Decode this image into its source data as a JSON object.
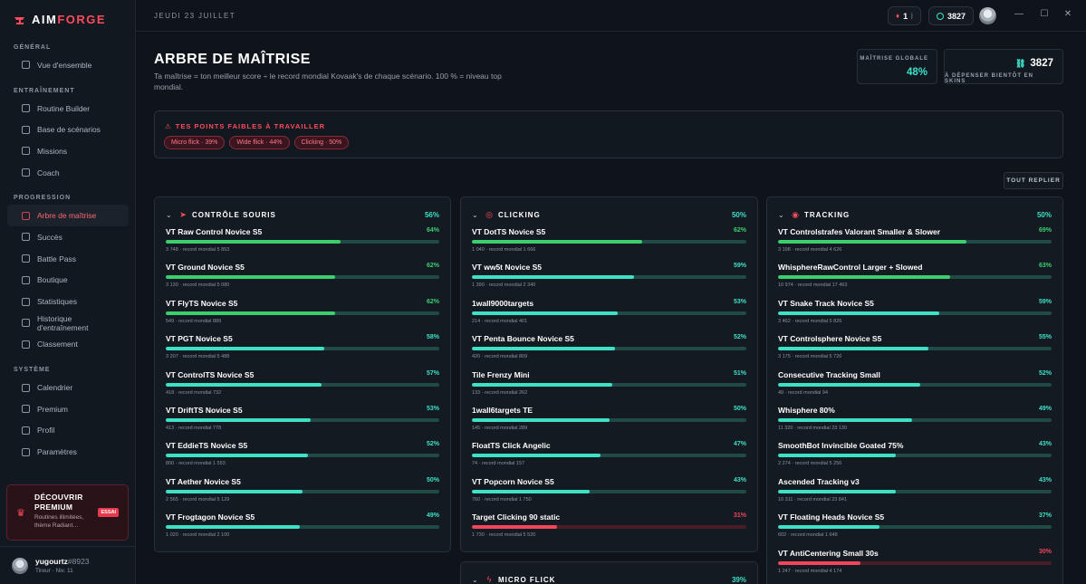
{
  "app": {
    "logo_a": "AIM",
    "logo_b": "FORGE"
  },
  "nav": {
    "sections": [
      {
        "label": "GÉNÉRAL",
        "items": [
          {
            "label": "Vue d'ensemble",
            "icon": "grid-icon"
          }
        ]
      },
      {
        "label": "ENTRAÎNEMENT",
        "items": [
          {
            "label": "Routine Builder",
            "icon": "clock-icon"
          },
          {
            "label": "Base de scénarios",
            "icon": "database-icon"
          },
          {
            "label": "Missions",
            "icon": "target-icon"
          },
          {
            "label": "Coach",
            "icon": "compass-icon"
          }
        ]
      },
      {
        "label": "PROGRESSION",
        "items": [
          {
            "label": "Arbre de maîtrise",
            "icon": "tree-icon",
            "active": true
          },
          {
            "label": "Succès",
            "icon": "trophy-icon"
          },
          {
            "label": "Battle Pass",
            "icon": "ticket-icon"
          },
          {
            "label": "Boutique",
            "icon": "bag-icon"
          },
          {
            "label": "Statistiques",
            "icon": "chart-icon"
          },
          {
            "label": "Historique d'entraînement",
            "icon": "history-icon"
          },
          {
            "label": "Classement",
            "icon": "medal-icon"
          }
        ]
      },
      {
        "label": "SYSTÈME",
        "items": [
          {
            "label": "Calendrier",
            "icon": "calendar-icon"
          },
          {
            "label": "Premium",
            "icon": "crown-icon"
          },
          {
            "label": "Profil",
            "icon": "user-icon"
          },
          {
            "label": "Paramètres",
            "icon": "gear-icon"
          }
        ]
      }
    ]
  },
  "promo": {
    "title": "DÉCOUVRIR PREMIUM",
    "subtitle": "Routines illimitées, thème Radiant…",
    "badge": "ESSAI"
  },
  "user": {
    "name": "yugourtz",
    "tag": "#8923",
    "level": "Tireur · Niv. 11"
  },
  "topbar": {
    "date": "JEUDI 23 JUILLET",
    "streak": "1",
    "streak_unit": "j",
    "coins": "3827"
  },
  "header": {
    "title": "ARBRE DE MAÎTRISE",
    "subtitle": "Ta maîtrise = ton meilleur score ÷ le record mondial Kovaak's de chaque scénario. 100 % = niveau top mondial.",
    "global_label": "MAÎTRISE GLOBALE",
    "global_value": "48%",
    "coins_value": "3827",
    "coins_label": "À DÉPENSER BIENTÔT EN SKINS"
  },
  "weak": {
    "title": "TES POINTS FAIBLES À TRAVAILLER",
    "chips": [
      "Micro flick · 39%",
      "Wide flick · 44%",
      "Clicking · 50%"
    ]
  },
  "collapse_label": "TOUT REPLIER",
  "colors": {
    "accent": "#ff4b5c",
    "teal": "#3ee0c6",
    "green": "#3ccf6e",
    "red": "#f0455a"
  },
  "panels": [
    {
      "title": "CONTRÔLE SOURIS",
      "pct": "56%",
      "icon": "cursor-icon",
      "rows": [
        {
          "name": "VT Raw Control Novice S5",
          "pct": "64%",
          "value": 64,
          "meta": "3 748 · record mondial 5 853",
          "tone": "green"
        },
        {
          "name": "VT Ground Novice S5",
          "pct": "62%",
          "value": 62,
          "meta": "3 130 · record mondial 5 080",
          "tone": "green"
        },
        {
          "name": "VT FlyTS Novice S5",
          "pct": "62%",
          "value": 62,
          "meta": "549 · record mondial 889",
          "tone": "green"
        },
        {
          "name": "VT PGT Novice S5",
          "pct": "58%",
          "value": 58,
          "meta": "3 207 · record mondial 5 488",
          "tone": "teal"
        },
        {
          "name": "VT ControlTS Novice S5",
          "pct": "57%",
          "value": 57,
          "meta": "418 · record mondial 732",
          "tone": "teal"
        },
        {
          "name": "VT DriftTS Novice S5",
          "pct": "53%",
          "value": 53,
          "meta": "413 · record mondial 778",
          "tone": "teal"
        },
        {
          "name": "VT EddieTS Novice S5",
          "pct": "52%",
          "value": 52,
          "meta": "800 · record mondial 1 553",
          "tone": "teal"
        },
        {
          "name": "VT Aether Novice S5",
          "pct": "50%",
          "value": 50,
          "meta": "2 565 · record mondial 5 129",
          "tone": "teal"
        },
        {
          "name": "VT Frogtagon Novice S5",
          "pct": "49%",
          "value": 49,
          "meta": "1 020 · record mondial 2 100",
          "tone": "teal"
        }
      ]
    },
    {
      "title": "CLICKING",
      "pct": "50%",
      "icon": "crosshair-icon",
      "rows": [
        {
          "name": "VT DotTS Novice S5",
          "pct": "62%",
          "value": 62,
          "meta": "1 040 · record mondial 1 666",
          "tone": "green"
        },
        {
          "name": "VT ww5t Novice S5",
          "pct": "59%",
          "value": 59,
          "meta": "1 390 · record mondial 2 340",
          "tone": "teal"
        },
        {
          "name": "1wall9000targets",
          "pct": "53%",
          "value": 53,
          "meta": "214 · record mondial 401",
          "tone": "teal"
        },
        {
          "name": "VT Penta Bounce Novice S5",
          "pct": "52%",
          "value": 52,
          "meta": "420 · record mondial 809",
          "tone": "teal"
        },
        {
          "name": "Tile Frenzy Mini",
          "pct": "51%",
          "value": 51,
          "meta": "133 · record mondial 262",
          "tone": "teal"
        },
        {
          "name": "1wall6targets TE",
          "pct": "50%",
          "value": 50,
          "meta": "145 · record mondial 289",
          "tone": "teal"
        },
        {
          "name": "FloatTS Click Angelic",
          "pct": "47%",
          "value": 47,
          "meta": "74 · record mondial 157",
          "tone": "teal"
        },
        {
          "name": "VT Popcorn Novice S5",
          "pct": "43%",
          "value": 43,
          "meta": "760 · record mondial 1 750",
          "tone": "teal"
        },
        {
          "name": "Target Clicking 90 static",
          "pct": "31%",
          "value": 31,
          "meta": "1 730 · record mondial 5 520",
          "tone": "red"
        }
      ]
    },
    {
      "title": "TRACKING",
      "pct": "50%",
      "icon": "tracking-icon",
      "rows": [
        {
          "name": "VT Controlstrafes Valorant Smaller & Slower",
          "pct": "69%",
          "value": 69,
          "meta": "3 198 · record mondial 4 626",
          "tone": "green"
        },
        {
          "name": "WhisphereRawControl Larger + Slowed",
          "pct": "63%",
          "value": 63,
          "meta": "10 974 · record mondial 17 463",
          "tone": "green"
        },
        {
          "name": "VT Snake Track Novice S5",
          "pct": "59%",
          "value": 59,
          "meta": "3 462 · record mondial 5 826",
          "tone": "teal"
        },
        {
          "name": "VT Controlsphere Novice S5",
          "pct": "55%",
          "value": 55,
          "meta": "3 175 · record mondial 5 726",
          "tone": "teal"
        },
        {
          "name": "Consecutive Tracking Small",
          "pct": "52%",
          "value": 52,
          "meta": "49 · record mondial 94",
          "tone": "teal"
        },
        {
          "name": "Whisphere 80%",
          "pct": "49%",
          "value": 49,
          "meta": "11 320 · record mondial 23 130",
          "tone": "teal"
        },
        {
          "name": "SmoothBot Invincible Goated 75%",
          "pct": "43%",
          "value": 43,
          "meta": "2 274 · record mondial 5 256",
          "tone": "teal"
        },
        {
          "name": "Ascended Tracking v3",
          "pct": "43%",
          "value": 43,
          "meta": "10 311 · record mondial 23 841",
          "tone": "teal"
        },
        {
          "name": "VT Floating Heads Novice S5",
          "pct": "37%",
          "value": 37,
          "meta": "602 · record mondial 1 648",
          "tone": "teal"
        },
        {
          "name": "VT AntiCentering Small 30s",
          "pct": "30%",
          "value": 30,
          "meta": "1 247 · record mondial 4 174",
          "tone": "red"
        }
      ]
    },
    {
      "title": "MICRO FLICK",
      "pct": "39%",
      "icon": "bolt-icon",
      "rows": []
    }
  ]
}
